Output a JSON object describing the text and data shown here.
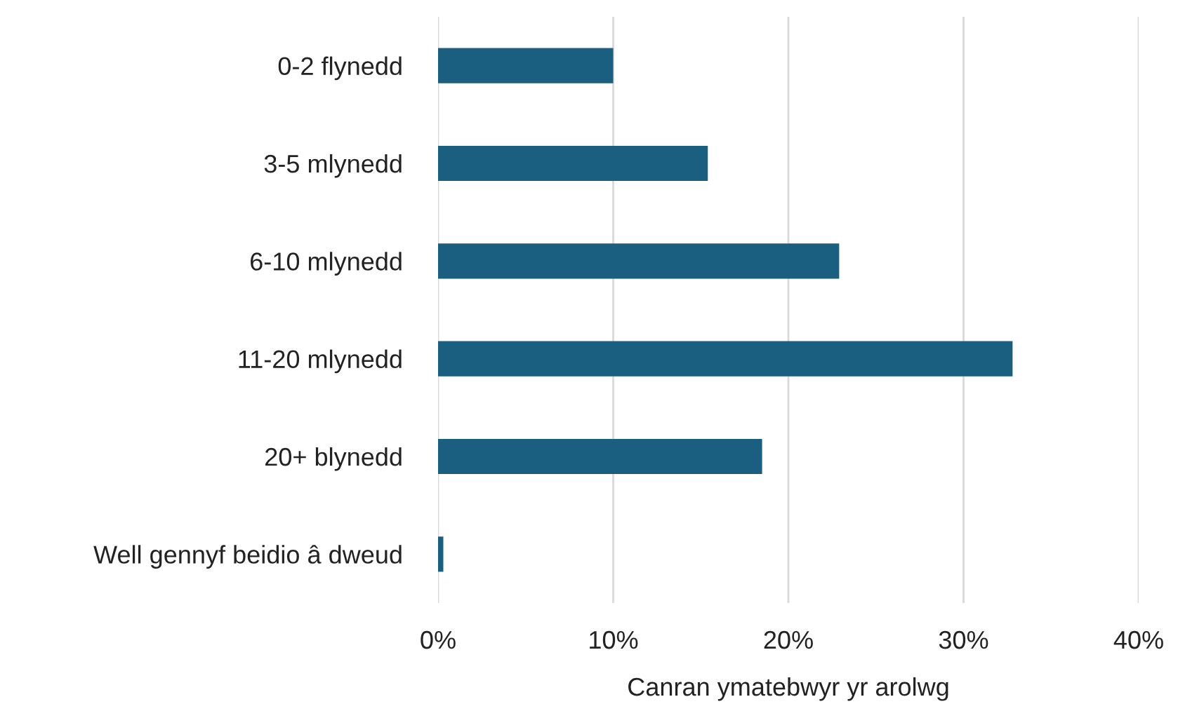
{
  "chart_data": {
    "type": "bar",
    "orientation": "horizontal",
    "categories": [
      "0-2 flynedd",
      "3-5 mlynedd",
      "6-10 mlynedd",
      "11-20 mlynedd",
      "20+ blynedd",
      "Well gennyf beidio â dweud"
    ],
    "values": [
      10.0,
      15.4,
      22.9,
      32.8,
      18.5,
      0.3
    ],
    "color": "#1a5e80",
    "xlabel": "Canran ymatebwyr yr arolwg",
    "xlim": [
      0,
      40
    ],
    "xticks": [
      {
        "value": 0,
        "label": "0%"
      },
      {
        "value": 10,
        "label": "10%"
      },
      {
        "value": 20,
        "label": "20%"
      },
      {
        "value": 30,
        "label": "30%"
      },
      {
        "value": 40,
        "label": "40%"
      }
    ],
    "grid": "x"
  }
}
